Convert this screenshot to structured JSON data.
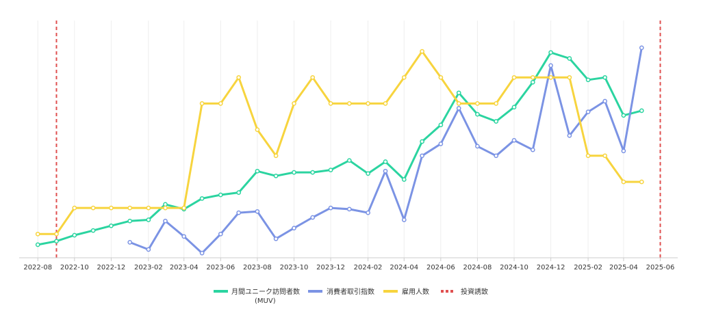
{
  "chart_data": {
    "type": "line",
    "title": "",
    "xlabel": "",
    "ylabel": "",
    "x_ticks": [
      "2022-08",
      "2022-10",
      "2022-12",
      "2023-02",
      "2023-04",
      "2023-06",
      "2023-08",
      "2023-10",
      "2023-12",
      "2024-02",
      "2024-04",
      "2024-06",
      "2024-08",
      "2024-10",
      "2024-12",
      "2025-02",
      "2025-04",
      "2025-06"
    ],
    "x_range": [
      "2022-07-01",
      "2025-06-30"
    ],
    "y_range": [
      0,
      100
    ],
    "y_axis_visible": false,
    "grid": "vertical",
    "legend_position": "bottom",
    "series": [
      {
        "name": "月間ユニーク訪問者数\n(MUV)",
        "color": "#2bd4a0",
        "points": [
          [
            "2022-08-01",
            5.5
          ],
          [
            "2022-09-01",
            7.0
          ],
          [
            "2022-10-01",
            9.5
          ],
          [
            "2022-11-01",
            11.5
          ],
          [
            "2022-12-01",
            13.5
          ],
          [
            "2023-01-01",
            15.5
          ],
          [
            "2023-02-01",
            16.0
          ],
          [
            "2023-03-01",
            22.5
          ],
          [
            "2023-04-01",
            20.5
          ],
          [
            "2023-05-01",
            25.0
          ],
          [
            "2023-06-01",
            26.5
          ],
          [
            "2023-07-01",
            27.5
          ],
          [
            "2023-08-01",
            36.5
          ],
          [
            "2023-09-01",
            34.5
          ],
          [
            "2023-10-01",
            36.0
          ],
          [
            "2023-11-01",
            36.0
          ],
          [
            "2023-12-01",
            37.0
          ],
          [
            "2024-01-01",
            41.0
          ],
          [
            "2024-02-01",
            35.5
          ],
          [
            "2024-03-01",
            40.5
          ],
          [
            "2024-04-01",
            33.0
          ],
          [
            "2024-05-01",
            49.0
          ],
          [
            "2024-06-01",
            56.0
          ],
          [
            "2024-07-01",
            69.5
          ],
          [
            "2024-08-01",
            60.5
          ],
          [
            "2024-09-01",
            57.5
          ],
          [
            "2024-10-01",
            63.5
          ],
          [
            "2024-11-01",
            74.0
          ],
          [
            "2024-12-01",
            86.5
          ],
          [
            "2025-01-01",
            84.0
          ],
          [
            "2025-02-01",
            75.0
          ],
          [
            "2025-03-01",
            76.0
          ],
          [
            "2025-04-01",
            60.0
          ],
          [
            "2025-05-01",
            62.0
          ]
        ]
      },
      {
        "name": "消費者取引指数",
        "color": "#7b93e4",
        "points": [
          [
            "2023-01-01",
            6.5
          ],
          [
            "2023-02-01",
            3.5
          ],
          [
            "2023-03-01",
            15.5
          ],
          [
            "2023-04-01",
            9.0
          ],
          [
            "2023-05-01",
            2.0
          ],
          [
            "2023-06-01",
            10.0
          ],
          [
            "2023-07-01",
            19.0
          ],
          [
            "2023-08-01",
            19.5
          ],
          [
            "2023-09-01",
            8.0
          ],
          [
            "2023-10-01",
            12.5
          ],
          [
            "2023-11-01",
            17.0
          ],
          [
            "2023-12-01",
            21.0
          ],
          [
            "2024-01-01",
            20.5
          ],
          [
            "2024-02-01",
            19.0
          ],
          [
            "2024-03-01",
            36.5
          ],
          [
            "2024-04-01",
            16.0
          ],
          [
            "2024-05-01",
            43.0
          ],
          [
            "2024-06-01",
            48.0
          ],
          [
            "2024-07-01",
            63.0
          ],
          [
            "2024-08-01",
            47.0
          ],
          [
            "2024-09-01",
            43.0
          ],
          [
            "2024-10-01",
            49.5
          ],
          [
            "2024-11-01",
            45.5
          ],
          [
            "2024-12-01",
            81.0
          ],
          [
            "2025-01-01",
            51.5
          ],
          [
            "2025-02-01",
            61.5
          ],
          [
            "2025-03-01",
            66.0
          ],
          [
            "2025-04-01",
            45.0
          ],
          [
            "2025-05-01",
            88.5
          ]
        ]
      },
      {
        "name": "雇用人数",
        "color": "#f7d43e",
        "points": [
          [
            "2022-08-01",
            10
          ],
          [
            "2022-09-01",
            10
          ],
          [
            "2022-10-01",
            21
          ],
          [
            "2022-11-01",
            21
          ],
          [
            "2022-12-01",
            21
          ],
          [
            "2023-01-01",
            21
          ],
          [
            "2023-02-01",
            21
          ],
          [
            "2023-03-01",
            21
          ],
          [
            "2023-04-01",
            21
          ],
          [
            "2023-05-01",
            65
          ],
          [
            "2023-06-01",
            65
          ],
          [
            "2023-07-01",
            76
          ],
          [
            "2023-08-01",
            54
          ],
          [
            "2023-09-01",
            43
          ],
          [
            "2023-10-01",
            65
          ],
          [
            "2023-11-01",
            76
          ],
          [
            "2023-12-01",
            65
          ],
          [
            "2024-01-01",
            65
          ],
          [
            "2024-02-01",
            65
          ],
          [
            "2024-03-01",
            65
          ],
          [
            "2024-04-01",
            76
          ],
          [
            "2024-05-01",
            87
          ],
          [
            "2024-06-01",
            76
          ],
          [
            "2024-07-01",
            65
          ],
          [
            "2024-08-01",
            65
          ],
          [
            "2024-09-01",
            65
          ],
          [
            "2024-10-01",
            76
          ],
          [
            "2024-11-01",
            76
          ],
          [
            "2024-12-01",
            76
          ],
          [
            "2025-01-01",
            76
          ],
          [
            "2025-02-01",
            43
          ],
          [
            "2025-03-01",
            43
          ],
          [
            "2025-04-01",
            32
          ],
          [
            "2025-05-01",
            32
          ]
        ]
      }
    ],
    "reference_lines": {
      "name": "投資誘致",
      "color": "#e05050",
      "style": "dashed",
      "x": [
        "2022-09-01",
        "2025-06-01"
      ]
    }
  }
}
